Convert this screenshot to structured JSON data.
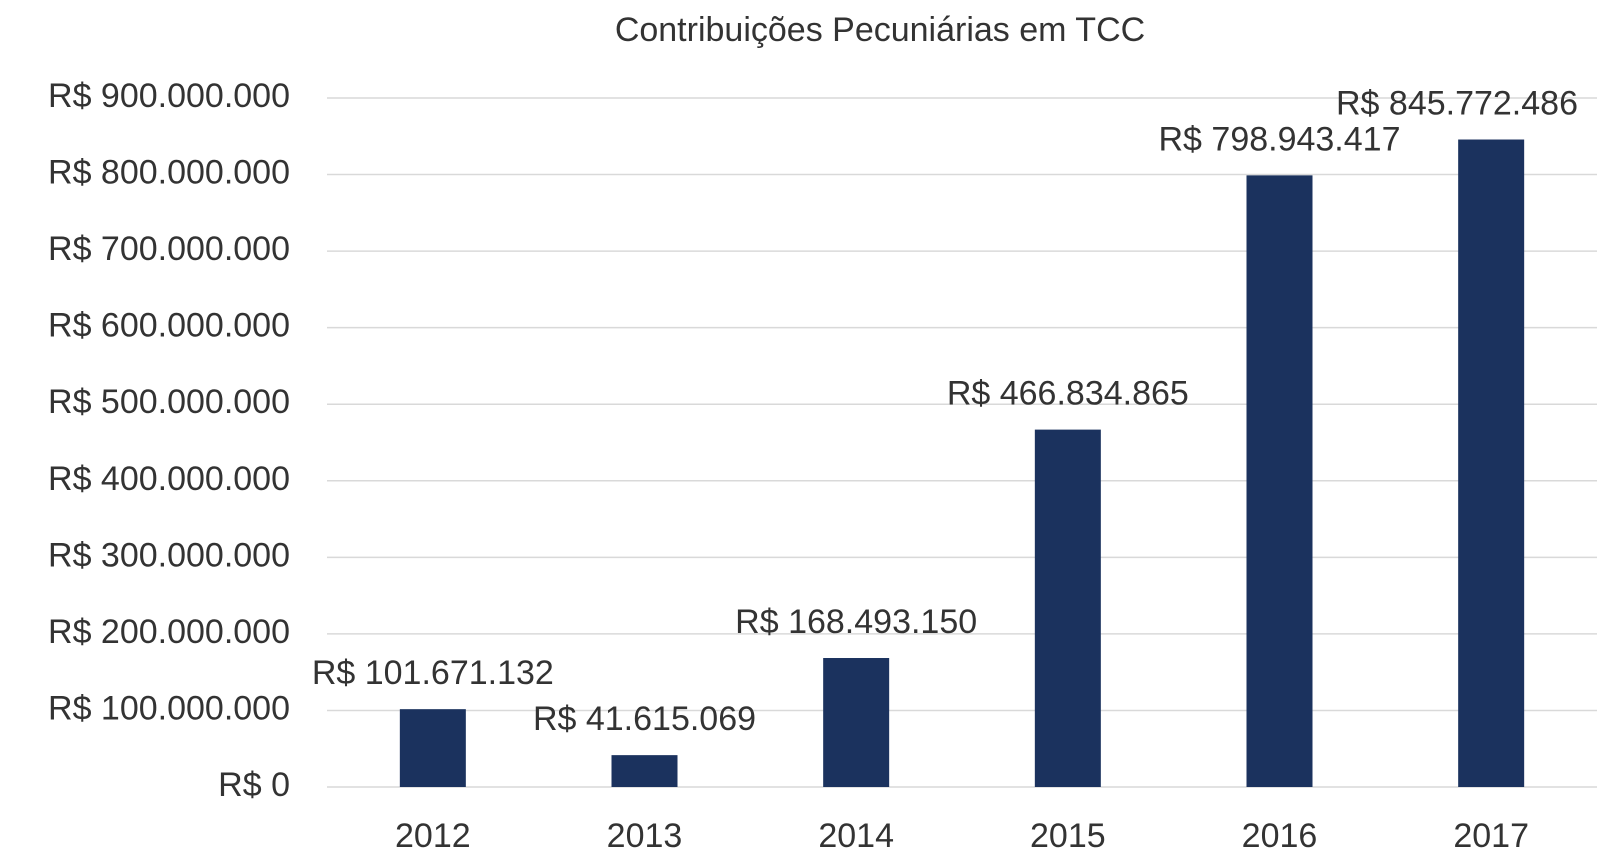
{
  "chart_data": {
    "type": "bar",
    "title": "Contribuições Pecuniárias em TCC",
    "categories": [
      "2012",
      "2013",
      "2014",
      "2015",
      "2016",
      "2017"
    ],
    "values": [
      101671132,
      41615069,
      168493150,
      466834865,
      798943417,
      845772486
    ],
    "value_labels": [
      "R$ 101.671.132",
      "R$ 41.615.069",
      "R$ 168.493.150",
      "R$ 466.834.865",
      "R$ 798.943.417",
      "R$ 845.772.486"
    ],
    "color": "#1b325e",
    "ylim": [
      0,
      900000000
    ],
    "yticks": [
      {
        "value": 0,
        "label": "R$ 0"
      },
      {
        "value": 100000000,
        "label": "R$ 100.000.000"
      },
      {
        "value": 200000000,
        "label": "R$ 200.000.000"
      },
      {
        "value": 300000000,
        "label": "R$ 300.000.000"
      },
      {
        "value": 400000000,
        "label": "R$ 400.000.000"
      },
      {
        "value": 500000000,
        "label": "R$ 500.000.000"
      },
      {
        "value": 600000000,
        "label": "R$ 600.000.000"
      },
      {
        "value": 700000000,
        "label": "R$ 700.000.000"
      },
      {
        "value": 800000000,
        "label": "R$ 800.000.000"
      },
      {
        "value": 900000000,
        "label": "R$ 900.000.000"
      }
    ],
    "grid": true
  }
}
